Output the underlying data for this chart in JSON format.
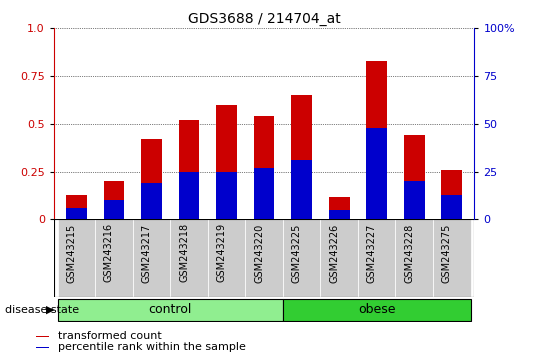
{
  "title": "GDS3688 / 214704_at",
  "samples": [
    "GSM243215",
    "GSM243216",
    "GSM243217",
    "GSM243218",
    "GSM243219",
    "GSM243220",
    "GSM243225",
    "GSM243226",
    "GSM243227",
    "GSM243228",
    "GSM243275"
  ],
  "transformed_count": [
    0.13,
    0.2,
    0.42,
    0.52,
    0.6,
    0.54,
    0.65,
    0.12,
    0.83,
    0.44,
    0.26
  ],
  "percentile_rank": [
    0.06,
    0.1,
    0.19,
    0.25,
    0.25,
    0.27,
    0.31,
    0.05,
    0.48,
    0.2,
    0.13
  ],
  "groups": [
    {
      "label": "control",
      "start": 0,
      "end": 5,
      "color": "#90EE90"
    },
    {
      "label": "obese",
      "start": 6,
      "end": 10,
      "color": "#32CD32"
    }
  ],
  "ylim": [
    0,
    1.0
  ],
  "yticks_left": [
    0,
    0.25,
    0.5,
    0.75,
    1.0
  ],
  "yticks_right": [
    0,
    25,
    50,
    75,
    100
  ],
  "bar_color_red": "#CC0000",
  "bar_color_blue": "#0000CC",
  "bar_width": 0.55,
  "legend_labels": [
    "transformed count",
    "percentile rank within the sample"
  ],
  "group_label_prefix": "disease state",
  "tick_bg_color": "#CCCCCC",
  "title_fontsize": 10,
  "tick_fontsize": 7,
  "axis_fontsize": 8
}
